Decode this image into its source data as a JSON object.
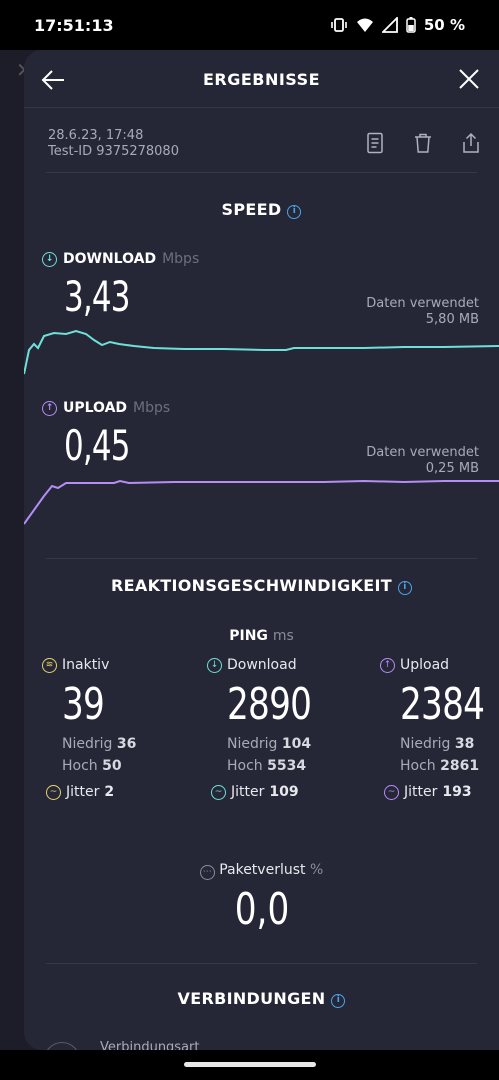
{
  "status_bar": {
    "time": "17:51:13",
    "battery": "50 %"
  },
  "header": {
    "title": "ERGEBNISSE"
  },
  "meta": {
    "date": "28.6.23, 17:48",
    "test_id": "Test-ID 9375278080"
  },
  "speed": {
    "title": "SPEED",
    "download": {
      "label": "DOWNLOAD",
      "unit": "Mbps",
      "value": "3,43",
      "data_label": "Daten verwendet",
      "data_value": "5,80 MB"
    },
    "upload": {
      "label": "UPLOAD",
      "unit": "Mbps",
      "value": "0,45",
      "data_label": "Daten verwendet",
      "data_value": "0,25 MB"
    }
  },
  "reaction": {
    "title": "REAKTIONSGESCHWINDIGKEIT",
    "ping_label": "PING",
    "ping_unit": "ms",
    "columns": [
      {
        "label": "Inaktiv",
        "value": "39",
        "low_label": "Niedrig",
        "low": "36",
        "high_label": "Hoch",
        "high": "50",
        "jitter_label": "Jitter",
        "jitter": "2",
        "color": "#e7d36a"
      },
      {
        "label": "Download",
        "value": "2890",
        "low_label": "Niedrig",
        "low": "104",
        "high_label": "Hoch",
        "high": "5534",
        "jitter_label": "Jitter",
        "jitter": "109",
        "color": "#6fe0d9"
      },
      {
        "label": "Upload",
        "value": "2384",
        "low_label": "Niedrig",
        "low": "38",
        "high_label": "Hoch",
        "high": "2861",
        "jitter_label": "Jitter",
        "jitter": "193",
        "color": "#b68cf5"
      }
    ],
    "packet_loss": {
      "label": "Paketverlust",
      "unit": "%",
      "value": "0,0"
    }
  },
  "connections": {
    "title": "VERBINDUNGEN",
    "partial_label": "Verbindungsart"
  },
  "colors": {
    "download": "#6fe0d9",
    "upload": "#b68cf5",
    "info": "#4aa3e8",
    "sheet": "#262736"
  }
}
